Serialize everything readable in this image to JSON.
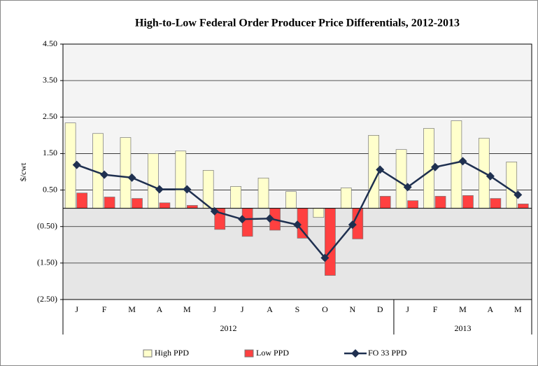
{
  "chart_data": {
    "type": "bar_line",
    "title": "High-to-Low Federal Order Producer Price Differentials, 2012-2013",
    "y_label": "$/cwt",
    "category_groups": [
      {
        "label": "2012",
        "categories": [
          "J",
          "F",
          "M",
          "A",
          "M",
          "J",
          "J",
          "A",
          "S",
          "O",
          "N",
          "D"
        ]
      },
      {
        "label": "2013",
        "categories": [
          "J",
          "F",
          "M",
          "A",
          "M"
        ]
      }
    ],
    "series": [
      {
        "name": "High PPD",
        "type": "bar",
        "color": "#ffffcc",
        "values": [
          2.34,
          2.05,
          1.94,
          1.5,
          1.57,
          1.04,
          0.6,
          0.83,
          0.46,
          -0.25,
          0.56,
          2.0,
          1.61,
          2.19,
          2.4,
          1.92,
          1.27
        ]
      },
      {
        "name": "Low PPD",
        "type": "bar",
        "color": "#ff4040",
        "values": [
          0.42,
          0.31,
          0.27,
          0.15,
          0.08,
          -0.58,
          -0.77,
          -0.6,
          -0.82,
          -1.84,
          -0.84,
          0.33,
          0.21,
          0.33,
          0.35,
          0.27,
          0.12
        ]
      },
      {
        "name": "FO 33 PPD",
        "type": "line",
        "color": "#1f3050",
        "values": [
          1.19,
          0.92,
          0.84,
          0.52,
          0.52,
          -0.08,
          -0.3,
          -0.28,
          -0.45,
          -1.36,
          -0.45,
          1.06,
          0.58,
          1.13,
          1.29,
          0.88,
          0.37
        ]
      }
    ],
    "ylim": [
      -2.5,
      4.5
    ],
    "yticks": [
      {
        "value": -2.5,
        "label": "(2.50)"
      },
      {
        "value": -1.5,
        "label": "(1.50)"
      },
      {
        "value": -0.5,
        "label": "(0.50)"
      },
      {
        "value": 0.5,
        "label": "0.50"
      },
      {
        "value": 1.5,
        "label": "1.50"
      },
      {
        "value": 2.5,
        "label": "2.50"
      },
      {
        "value": 3.5,
        "label": "3.50"
      },
      {
        "value": 4.5,
        "label": "4.50"
      }
    ],
    "grid": true,
    "legend": "bottom"
  }
}
